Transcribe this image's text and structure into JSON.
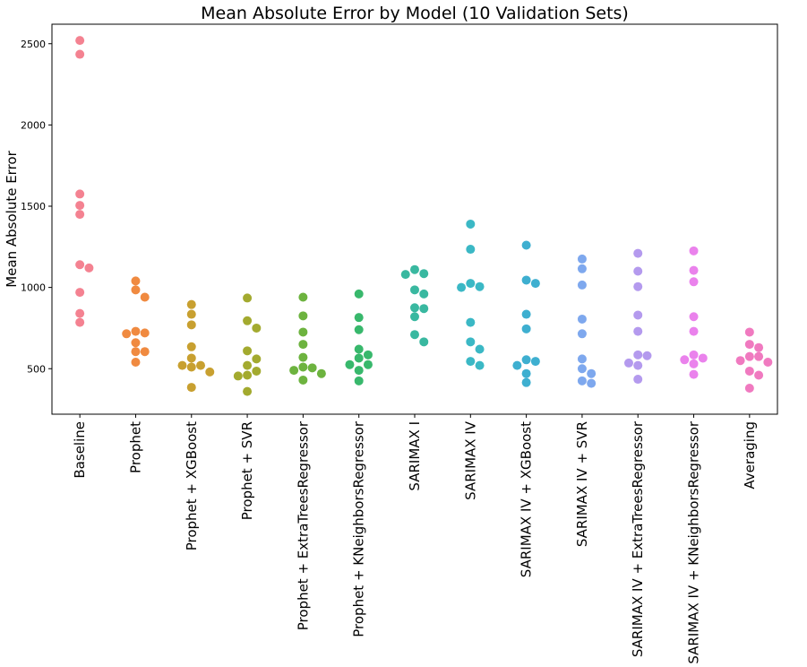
{
  "chart_data": {
    "type": "scatter",
    "subtype": "swarm",
    "title": "Mean Absolute Error by Model (10 Validation Sets)",
    "xlabel": "",
    "ylabel": "Mean Absolute Error",
    "ylim": [
      220,
      2620
    ],
    "yticks": [
      500,
      1000,
      1500,
      2000,
      2500
    ],
    "grid": false,
    "categories": [
      "Baseline",
      "Prophet",
      "Prophet + XGBoost",
      "Prophet + SVR",
      "Prophet + ExtraTreesRegressor",
      "Prophet + KNeighborsRegressor",
      "SARIMAX I",
      "SARIMAX IV",
      "SARIMAX IV + XGBoost",
      "SARIMAX IV + SVR",
      "SARIMAX IV + ExtraTreesRegressor",
      "SARIMAX IV + KNeighborsRegressor",
      "Averaging"
    ],
    "colors": [
      "#f48291",
      "#f08a40",
      "#c8a030",
      "#a3aa2f",
      "#6db33f",
      "#38b86c",
      "#39b8a0",
      "#3bb8c5",
      "#3eafd0",
      "#7ea8ee",
      "#b49aee",
      "#ea82ec",
      "#f07ac0"
    ],
    "series": [
      {
        "category": "Baseline",
        "values": [
          2520,
          2435,
          1575,
          1505,
          1450,
          1140,
          1120,
          970,
          840,
          785
        ]
      },
      {
        "category": "Prophet",
        "values": [
          1040,
          985,
          940,
          730,
          720,
          715,
          660,
          605,
          605,
          540
        ]
      },
      {
        "category": "Prophet + XGBoost",
        "values": [
          895,
          835,
          770,
          635,
          565,
          520,
          520,
          510,
          480,
          385
        ]
      },
      {
        "category": "Prophet + SVR",
        "values": [
          935,
          795,
          750,
          610,
          560,
          520,
          485,
          460,
          455,
          360
        ]
      },
      {
        "category": "Prophet + ExtraTreesRegressor",
        "values": [
          940,
          825,
          725,
          650,
          570,
          510,
          505,
          490,
          470,
          430
        ]
      },
      {
        "category": "Prophet + KNeighborsRegressor",
        "values": [
          960,
          815,
          740,
          620,
          585,
          565,
          525,
          525,
          490,
          425
        ]
      },
      {
        "category": "SARIMAX I",
        "values": [
          1110,
          1085,
          1080,
          985,
          960,
          875,
          870,
          820,
          710,
          665
        ]
      },
      {
        "category": "SARIMAX IV",
        "values": [
          1390,
          1235,
          1025,
          1005,
          1000,
          785,
          665,
          620,
          545,
          520
        ]
      },
      {
        "category": "SARIMAX IV + XGBoost",
        "values": [
          1260,
          1045,
          1025,
          835,
          745,
          555,
          545,
          520,
          470,
          415
        ]
      },
      {
        "category": "SARIMAX IV + SVR",
        "values": [
          1175,
          1115,
          1015,
          805,
          715,
          560,
          500,
          470,
          425,
          410
        ]
      },
      {
        "category": "SARIMAX IV + ExtraTreesRegressor",
        "values": [
          1210,
          1100,
          1005,
          830,
          730,
          585,
          580,
          535,
          520,
          435
        ]
      },
      {
        "category": "SARIMAX IV + KNeighborsRegressor",
        "values": [
          1225,
          1105,
          1035,
          820,
          730,
          585,
          565,
          555,
          530,
          465
        ]
      },
      {
        "category": "Averaging",
        "values": [
          725,
          650,
          630,
          575,
          575,
          550,
          540,
          485,
          460,
          380
        ]
      }
    ]
  }
}
